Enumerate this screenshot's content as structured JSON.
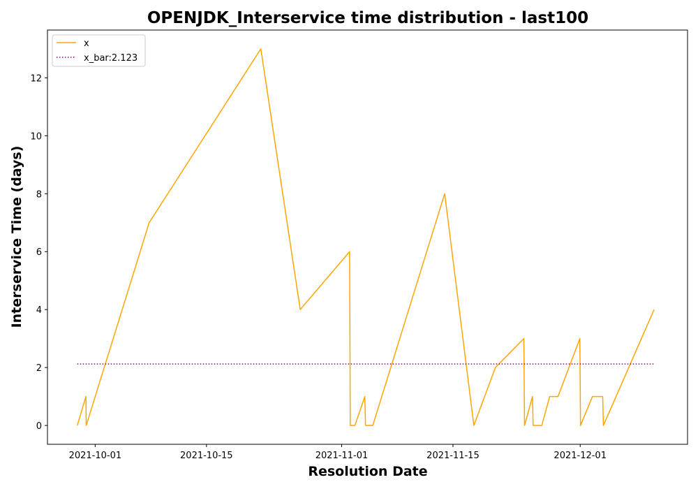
{
  "chart_data": {
    "type": "line",
    "title": "OPENJDK_Interservice time distribution - last100",
    "xlabel": "Resolution Date",
    "ylabel": "Interservice Time (days)",
    "ylim": [
      -0.65,
      13.65
    ],
    "xlim": [
      "2021-09-25T00:00",
      "2021-12-14T12:00"
    ],
    "x_ticks": [
      "2021-10-01",
      "2021-10-15",
      "2021-11-01",
      "2021-11-15",
      "2021-12-01"
    ],
    "y_ticks": [
      0,
      2,
      4,
      6,
      8,
      10,
      12
    ],
    "legend_position": "top-left",
    "series": [
      {
        "name": "x",
        "color": "#ffa500",
        "style": "solid",
        "points": [
          [
            "2021-09-28T18:00",
            0
          ],
          [
            "2021-09-29T20:00",
            1
          ],
          [
            "2021-09-29T21:00",
            0
          ],
          [
            "2021-10-07T19:00",
            7
          ],
          [
            "2021-10-21T20:00",
            13
          ],
          [
            "2021-10-26T19:00",
            4
          ],
          [
            "2021-11-02T00:00",
            6
          ],
          [
            "2021-11-02T02:00",
            0
          ],
          [
            "2021-11-02T16:00",
            0
          ],
          [
            "2021-11-03T22:00",
            1
          ],
          [
            "2021-11-04T00:00",
            0
          ],
          [
            "2021-11-04T22:00",
            0
          ],
          [
            "2021-11-13T23:00",
            8
          ],
          [
            "2021-11-17T15:00",
            0
          ],
          [
            "2021-11-20T08:00",
            2
          ],
          [
            "2021-11-23T22:00",
            3
          ],
          [
            "2021-11-24T00:00",
            0
          ],
          [
            "2021-11-25T00:00",
            1
          ],
          [
            "2021-11-25T02:00",
            0
          ],
          [
            "2021-11-26T04:00",
            0
          ],
          [
            "2021-11-27T04:00",
            1
          ],
          [
            "2021-11-28T05:00",
            1
          ],
          [
            "2021-11-30T23:00",
            3
          ],
          [
            "2021-12-01T01:00",
            0
          ],
          [
            "2021-12-02T13:00",
            1
          ],
          [
            "2021-12-03T20:00",
            1
          ],
          [
            "2021-12-03T22:00",
            0
          ],
          [
            "2021-12-10T07:00",
            4
          ]
        ]
      },
      {
        "name": "x_bar:2.123",
        "color": "#800080",
        "style": "dotted",
        "value": 2.123,
        "x_range": [
          "2021-09-28T18:00",
          "2021-12-10T07:00"
        ]
      }
    ]
  }
}
